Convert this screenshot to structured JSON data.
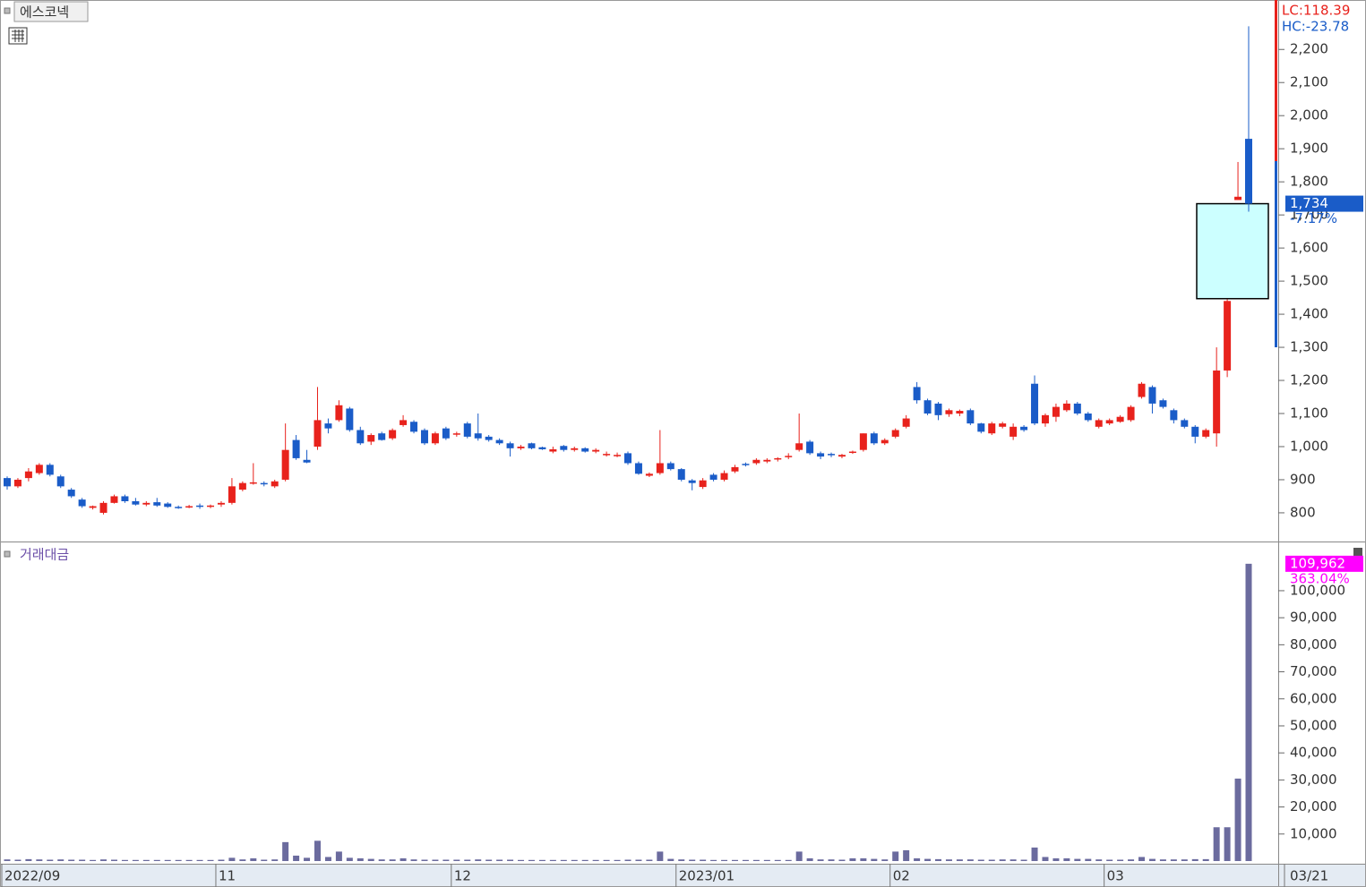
{
  "chart_data": {
    "type": "candlestick",
    "title": "에스코넥",
    "lc_label": "LC:118.39",
    "hc_label": "HC:-23.78",
    "last_close_label": "1,734",
    "change_label": "-7.17%",
    "last_date_label": "03/21",
    "up_color": "#e8221c",
    "down_color": "#1a5cc8",
    "highlight_range": [
      1447,
      1734
    ],
    "highlight_color": "#ccffff",
    "categories": [
      "2022/09",
      null,
      null,
      null,
      null,
      null,
      null,
      null,
      null,
      null,
      null,
      null,
      null,
      null,
      null,
      null,
      null,
      null,
      null,
      null,
      "11",
      null,
      null,
      null,
      null,
      null,
      null,
      null,
      null,
      null,
      null,
      null,
      null,
      null,
      null,
      null,
      null,
      null,
      null,
      null,
      null,
      null,
      "12",
      null,
      null,
      null,
      null,
      null,
      null,
      null,
      null,
      null,
      null,
      null,
      null,
      null,
      null,
      null,
      null,
      null,
      null,
      null,
      null,
      "2023/01",
      null,
      null,
      null,
      null,
      null,
      null,
      null,
      null,
      null,
      null,
      null,
      null,
      null,
      null,
      null,
      null,
      null,
      null,
      null,
      "02",
      null,
      null,
      null,
      null,
      null,
      null,
      null,
      null,
      null,
      null,
      null,
      null,
      null,
      null,
      null,
      null,
      null,
      null,
      null,
      "03",
      null,
      null,
      null,
      null,
      null,
      null,
      null,
      null,
      null,
      null,
      null,
      null,
      null
    ],
    "open": [
      905,
      880,
      905,
      920,
      945,
      910,
      870,
      840,
      815,
      800,
      830,
      850,
      835,
      825,
      832,
      828,
      818,
      818,
      822,
      818,
      825,
      830,
      870,
      888,
      890,
      880,
      900,
      1020,
      960,
      1000,
      1070,
      1080,
      1115,
      1050,
      1015,
      1040,
      1025,
      1065,
      1075,
      1050,
      1010,
      1055,
      1038,
      1070,
      1040,
      1030,
      1020,
      1010,
      995,
      1010,
      998,
      985,
      1002,
      990,
      995,
      985,
      975,
      972,
      980,
      950,
      912,
      920,
      950,
      932,
      898,
      878,
      915,
      900,
      925,
      948,
      950,
      955,
      962,
      968,
      990,
      1015,
      980,
      978,
      970,
      982,
      990,
      1040,
      1010,
      1030,
      1060,
      1180,
      1140,
      1130,
      1098,
      1100,
      1110,
      1070,
      1040,
      1060,
      1030,
      1060,
      1190,
      1070,
      1090,
      1110,
      1130,
      1100,
      1060,
      1070,
      1075,
      1080,
      1150,
      1180,
      1140,
      1110,
      1080,
      1060,
      1030,
      1040,
      1230,
      1745,
      1930
    ],
    "high": [
      910,
      905,
      935,
      950,
      950,
      915,
      875,
      845,
      822,
      835,
      855,
      855,
      845,
      835,
      845,
      832,
      822,
      824,
      828,
      825,
      835,
      905,
      895,
      950,
      895,
      900,
      1070,
      1035,
      990,
      1180,
      1085,
      1140,
      1120,
      1060,
      1040,
      1045,
      1055,
      1095,
      1080,
      1055,
      1045,
      1060,
      1045,
      1075,
      1100,
      1035,
      1025,
      1015,
      1005,
      1012,
      1000,
      1000,
      1005,
      1000,
      998,
      995,
      985,
      982,
      985,
      955,
      922,
      1050,
      955,
      935,
      902,
      905,
      920,
      928,
      945,
      952,
      965,
      965,
      968,
      980,
      1100,
      1020,
      985,
      982,
      978,
      988,
      1040,
      1045,
      1025,
      1055,
      1095,
      1195,
      1145,
      1135,
      1115,
      1112,
      1115,
      1072,
      1075,
      1075,
      1070,
      1065,
      1215,
      1100,
      1130,
      1140,
      1135,
      1105,
      1085,
      1085,
      1095,
      1125,
      1195,
      1185,
      1145,
      1115,
      1085,
      1065,
      1055,
      1300,
      1445,
      1860,
      2270
    ],
    "low": [
      870,
      875,
      895,
      915,
      910,
      875,
      845,
      815,
      810,
      795,
      828,
      830,
      822,
      820,
      818,
      815,
      812,
      814,
      812,
      814,
      818,
      825,
      865,
      885,
      880,
      875,
      895,
      960,
      950,
      990,
      1040,
      1075,
      1045,
      1005,
      1005,
      1018,
      1020,
      1060,
      1040,
      1005,
      1005,
      1020,
      1030,
      1025,
      1018,
      1015,
      1005,
      970,
      990,
      992,
      990,
      980,
      985,
      985,
      982,
      980,
      970,
      968,
      945,
      915,
      908,
      915,
      928,
      895,
      868,
      872,
      895,
      895,
      920,
      940,
      945,
      950,
      955,
      962,
      985,
      975,
      962,
      968,
      965,
      978,
      985,
      1005,
      1005,
      1025,
      1055,
      1130,
      1095,
      1080,
      1090,
      1092,
      1065,
      1040,
      1035,
      1055,
      1020,
      1045,
      1065,
      1060,
      1075,
      1105,
      1095,
      1075,
      1055,
      1065,
      1072,
      1075,
      1145,
      1100,
      1115,
      1070,
      1055,
      1010,
      1025,
      1000,
      1210,
      1745,
      1710
    ],
    "close": [
      880,
      900,
      925,
      945,
      915,
      880,
      850,
      820,
      820,
      830,
      850,
      835,
      825,
      830,
      822,
      818,
      815,
      820,
      818,
      822,
      830,
      880,
      890,
      892,
      888,
      895,
      990,
      965,
      952,
      1080,
      1055,
      1125,
      1050,
      1010,
      1035,
      1020,
      1050,
      1080,
      1045,
      1010,
      1040,
      1025,
      1040,
      1030,
      1025,
      1020,
      1010,
      995,
      1000,
      995,
      992,
      992,
      990,
      995,
      985,
      990,
      978,
      975,
      950,
      918,
      918,
      950,
      932,
      900,
      890,
      898,
      900,
      920,
      938,
      945,
      960,
      960,
      965,
      972,
      1010,
      980,
      970,
      975,
      975,
      985,
      1040,
      1010,
      1020,
      1050,
      1085,
      1140,
      1100,
      1095,
      1110,
      1108,
      1070,
      1045,
      1070,
      1070,
      1060,
      1050,
      1070,
      1095,
      1120,
      1130,
      1100,
      1080,
      1080,
      1080,
      1090,
      1120,
      1190,
      1130,
      1120,
      1080,
      1060,
      1030,
      1050,
      1230,
      1440,
      1755,
      1734
    ],
    "ylim": [
      716,
      2344
    ],
    "yticks": [
      800,
      900,
      {
        "value": 1000,
        "label": "1,000"
      },
      {
        "value": 1100,
        "label": "1,100"
      },
      {
        "value": 1200,
        "label": "1,200"
      },
      {
        "value": 1300,
        "label": "1,300"
      },
      {
        "value": 1400,
        "label": "1,400"
      },
      {
        "value": 1500,
        "label": "1,500"
      },
      {
        "value": 1600,
        "label": "1,600"
      },
      {
        "value": 1700,
        "label": "1,700"
      },
      {
        "value": 1800,
        "label": "1,800"
      },
      {
        "value": 1900,
        "label": "1,900"
      },
      {
        "value": 2000,
        "label": "2,000"
      },
      {
        "value": 2100,
        "label": "2,100"
      },
      {
        "value": 2200,
        "label": "2,200"
      }
    ],
    "volume": {
      "title": "거래대금",
      "color": "#6b6b9e",
      "tag_color": "#ff00ff",
      "last_value_label": "109,962",
      "change_label": "363.04%",
      "values": [
        600,
        500,
        700,
        600,
        500,
        600,
        500,
        500,
        400,
        600,
        500,
        400,
        400,
        400,
        400,
        400,
        400,
        400,
        400,
        400,
        500,
        1200,
        600,
        1000,
        500,
        600,
        7000,
        2000,
        1200,
        7500,
        1500,
        3500,
        1200,
        1000,
        800,
        600,
        600,
        1000,
        600,
        500,
        500,
        500,
        500,
        500,
        600,
        500,
        500,
        500,
        400,
        400,
        400,
        400,
        400,
        400,
        400,
        400,
        400,
        400,
        500,
        500,
        500,
        3500,
        800,
        600,
        500,
        500,
        400,
        400,
        400,
        400,
        400,
        400,
        400,
        400,
        3500,
        1000,
        600,
        600,
        500,
        1000,
        1000,
        800,
        600,
        3500,
        4000,
        1000,
        800,
        700,
        600,
        600,
        600,
        500,
        500,
        600,
        600,
        500,
        5000,
        1500,
        1000,
        1000,
        800,
        800,
        600,
        500,
        500,
        600,
        1500,
        800,
        600,
        600,
        600,
        700,
        700,
        12500,
        12500,
        30500,
        109962
      ],
      "ylim": [
        0,
        117200
      ],
      "yticks": [
        {
          "value": 10000,
          "label": "10,000"
        },
        {
          "value": 20000,
          "label": "20,000"
        },
        {
          "value": 30000,
          "label": "30,000"
        },
        {
          "value": 40000,
          "label": "40,000"
        },
        {
          "value": 50000,
          "label": "50,000"
        },
        {
          "value": 60000,
          "label": "60,000"
        },
        {
          "value": 70000,
          "label": "70,000"
        },
        {
          "value": 80000,
          "label": "80,000"
        },
        {
          "value": 90000,
          "label": "90,000"
        },
        {
          "value": 100000,
          "label": "100,000"
        }
      ]
    }
  }
}
